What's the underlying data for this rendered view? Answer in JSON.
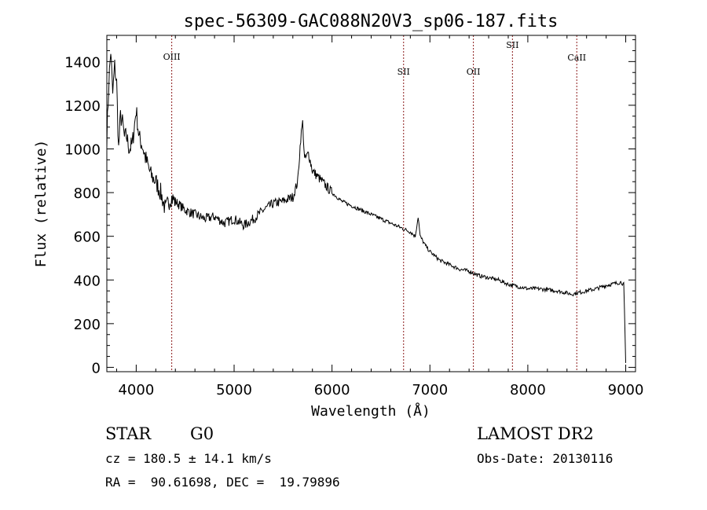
{
  "chart_data": {
    "type": "line",
    "title": "spec-56309-GAC088N20V3_sp06-187.fits",
    "xlabel": "Wavelength (Å)",
    "ylabel": "Flux (relative)",
    "xlim": [
      3700,
      9100
    ],
    "ylim": [
      -20,
      1520
    ],
    "x_ticks": [
      4000,
      5000,
      6000,
      7000,
      8000,
      9000
    ],
    "y_ticks": [
      0,
      200,
      400,
      600,
      800,
      1000,
      1200,
      1400
    ],
    "line_color": "#000000",
    "marker_color": "#8b1a1a",
    "lines": [
      {
        "label": "OIII",
        "x": 4363
      },
      {
        "label": "SII",
        "x": 6731
      },
      {
        "label": "OII",
        "x": 7444
      },
      {
        "label": "SII",
        "x": 7843
      },
      {
        "label": "CaII",
        "x": 8500
      }
    ],
    "series": [
      {
        "x": [
          3700,
          3720,
          3740,
          3760,
          3780,
          3800,
          3820,
          3840,
          3860,
          3880,
          3900,
          3930,
          3960,
          4000,
          4030,
          4060,
          4100,
          4150,
          4200,
          4250,
          4300,
          4350,
          4400,
          4500,
          4600,
          4700,
          4800,
          4900,
          5000,
          5100,
          5200,
          5300,
          5400,
          5500,
          5600,
          5650,
          5680,
          5700,
          5720,
          5760,
          5800,
          5900,
          6000,
          6100,
          6200,
          6300,
          6400,
          6500,
          6600,
          6650,
          6700,
          6800,
          6850,
          6880,
          6900,
          6950,
          7000,
          7100,
          7200,
          7300,
          7400,
          7500,
          7600,
          7700,
          7800,
          7900,
          8000,
          8100,
          8200,
          8300,
          8400,
          8450,
          8500,
          8600,
          8700,
          8800,
          8900,
          8950,
          8980,
          9000
        ],
        "y": [
          1050,
          1300,
          1450,
          1250,
          1380,
          1300,
          1000,
          1150,
          1120,
          1050,
          1060,
          1000,
          1020,
          1180,
          1050,
          1020,
          950,
          880,
          850,
          800,
          720,
          780,
          760,
          720,
          700,
          680,
          690,
          660,
          680,
          650,
          680,
          720,
          750,
          760,
          780,
          850,
          1050,
          1120,
          950,
          980,
          900,
          850,
          800,
          760,
          740,
          720,
          700,
          680,
          660,
          650,
          640,
          620,
          600,
          690,
          600,
          560,
          530,
          490,
          470,
          450,
          440,
          420,
          410,
          400,
          380,
          370,
          360,
          360,
          355,
          350,
          340,
          335,
          340,
          350,
          360,
          375,
          385,
          390,
          380,
          20
        ]
      }
    ]
  },
  "info": {
    "class_label": "STAR",
    "subclass": "G0",
    "survey": "LAMOST DR2",
    "cz": "cz = 180.5 ± 14.1 km/s",
    "obs_date": "Obs-Date: 20130116",
    "coords": "RA =  90.61698, DEC =  19.79896"
  }
}
